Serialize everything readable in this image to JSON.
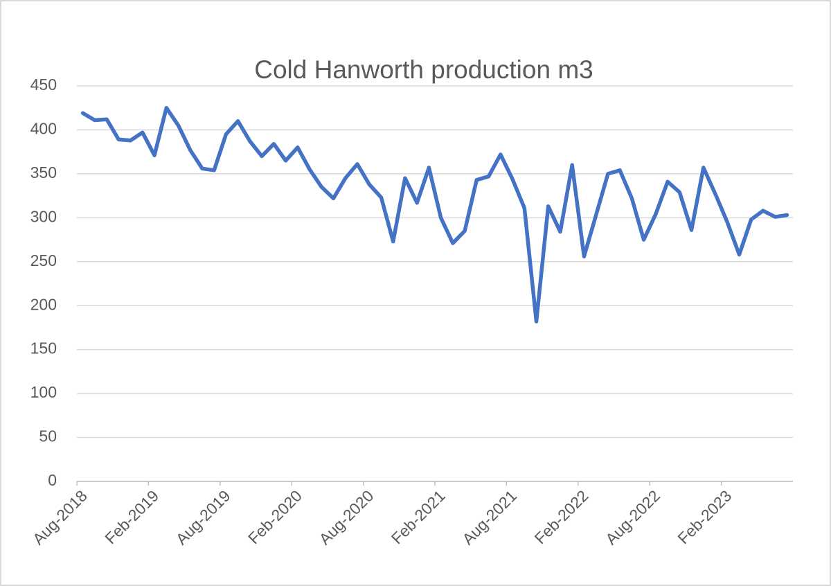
{
  "chart_data": {
    "type": "line",
    "title": "Cold Hanworth production m3",
    "categories": [
      "Aug-2018",
      null,
      null,
      null,
      null,
      null,
      "Feb-2019",
      null,
      null,
      null,
      null,
      null,
      "Aug-2019",
      null,
      null,
      null,
      null,
      null,
      "Feb-2020",
      null,
      null,
      null,
      null,
      null,
      "Aug-2020",
      null,
      null,
      null,
      null,
      null,
      "Feb-2021",
      null,
      null,
      null,
      null,
      null,
      "Aug-2021",
      null,
      null,
      null,
      null,
      null,
      "Feb-2022",
      null,
      null,
      null,
      null,
      null,
      "Aug-2022",
      null,
      null,
      null,
      null,
      null,
      "Feb-2023",
      null,
      null,
      null,
      null,
      null
    ],
    "values": [
      419,
      411,
      412,
      389,
      388,
      397,
      371,
      425,
      405,
      377,
      356,
      354,
      395,
      410,
      387,
      370,
      384,
      365,
      380,
      355,
      335,
      322,
      345,
      361,
      338,
      323,
      273,
      345,
      317,
      357,
      300,
      271,
      285,
      343,
      347,
      372,
      344,
      311,
      182,
      313,
      284,
      360,
      256,
      303,
      350,
      354,
      322,
      275,
      304,
      341,
      329,
      286,
      357,
      327,
      295,
      258,
      298,
      308,
      301,
      303
    ],
    "color": "#4472c4",
    "ylim": [
      0,
      450
    ],
    "yticks": [
      0,
      50,
      100,
      150,
      200,
      250,
      300,
      350,
      400,
      450
    ],
    "grid": true
  }
}
